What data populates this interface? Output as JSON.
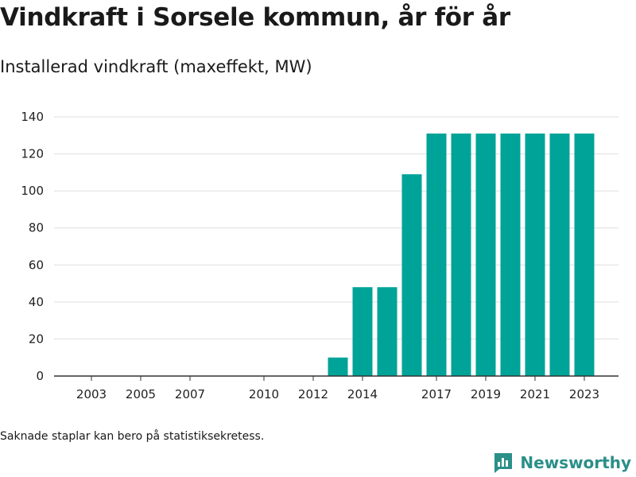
{
  "header": {
    "title": "Vindkraft i Sorsele kommun, år för år",
    "subtitle": "Installerad vindkraft (maxeffekt, MW)"
  },
  "footer": {
    "note": "Saknade staplar kan bero på statistiksekretess.",
    "brand": "Newsworthy",
    "brand_icon": "bar-chart-logo-icon",
    "brand_color": "#2a8f88"
  },
  "chart_data": {
    "type": "bar",
    "categories": [
      "2003",
      "2004",
      "2005",
      "2006",
      "2007",
      "2008",
      "2009",
      "2010",
      "2011",
      "2012",
      "2013",
      "2014",
      "2015",
      "2016",
      "2017",
      "2018",
      "2019",
      "2020",
      "2021",
      "2022",
      "2023"
    ],
    "values": [
      0,
      0,
      0,
      0,
      0,
      0,
      0,
      0,
      0,
      0,
      10,
      48,
      48,
      109,
      131,
      131,
      131,
      131,
      131,
      131,
      131
    ],
    "x_tick_labels": [
      "2003",
      "2005",
      "2007",
      "2010",
      "2012",
      "2014",
      "2017",
      "2019",
      "2021",
      "2023"
    ],
    "y_ticks": [
      0,
      20,
      40,
      60,
      80,
      100,
      120,
      140
    ],
    "ylim": [
      0,
      140
    ],
    "bar_color": "#00a398",
    "grid": true
  }
}
